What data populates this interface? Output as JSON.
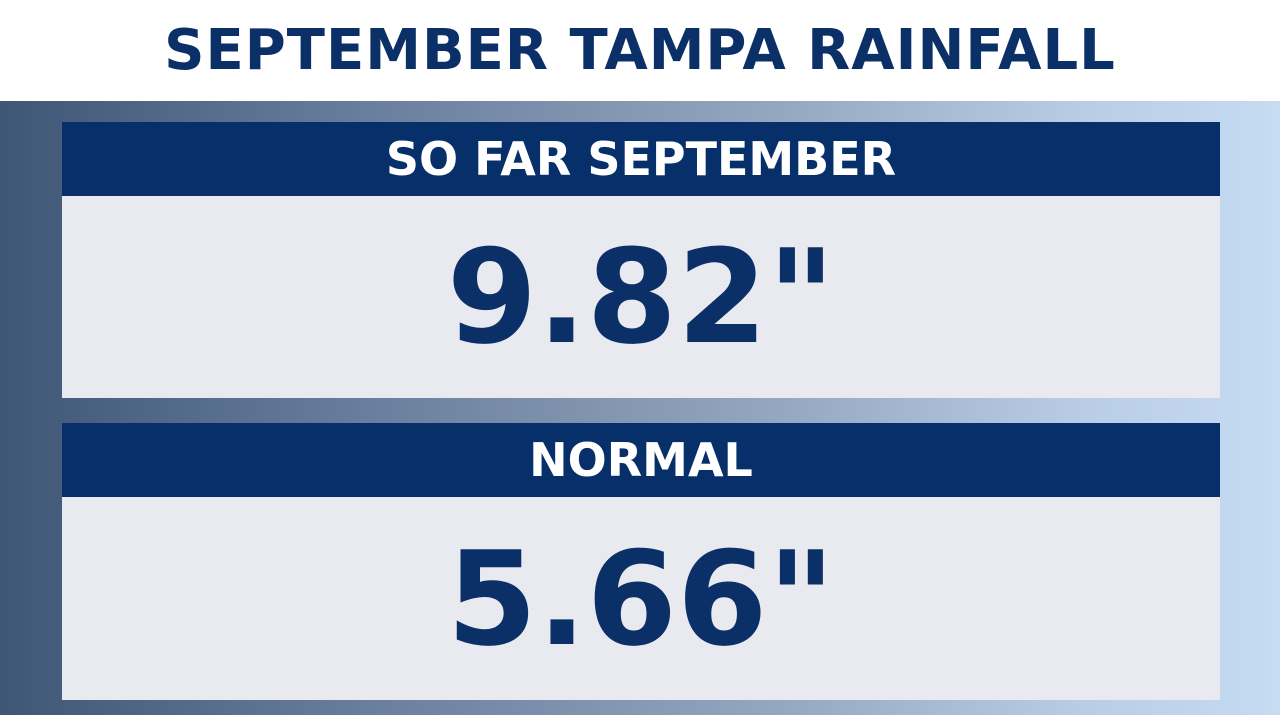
{
  "title": "SEPTEMBER TAMPA RAINFALL",
  "panels": [
    {
      "label": "SO FAR SEPTEMBER",
      "value": "9.82\""
    },
    {
      "label": "NORMAL",
      "value": "5.66\""
    }
  ],
  "colors": {
    "navy": "#07306b",
    "title_text": "#0b3068",
    "panel_body": "#e8eaf0",
    "background_left": "#3f5676",
    "background_right": "#c6dcf3"
  }
}
